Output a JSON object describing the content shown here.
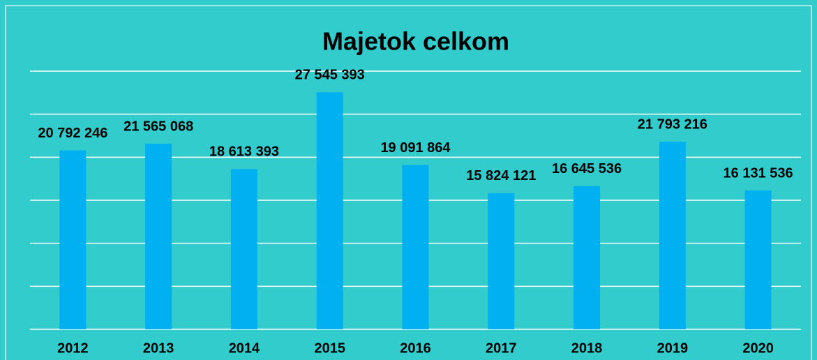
{
  "chart_data": {
    "type": "bar",
    "title": "Majetok celkom",
    "categories": [
      "2012",
      "2013",
      "2014",
      "2015",
      "2016",
      "2017",
      "2018",
      "2019",
      "2020"
    ],
    "values": [
      20792246,
      21565068,
      18613393,
      27545393,
      19091864,
      15824121,
      16645536,
      21793216,
      16131536
    ],
    "value_labels": [
      "20 792 246",
      "21 565 068",
      "18 613 393",
      "27 545 393",
      "19 091 864",
      "15 824 121",
      "16 645 536",
      "21 793 216",
      "16 131 536"
    ],
    "color": "#00b0f0",
    "ylim": [
      0,
      30000000
    ],
    "yticks": [
      0,
      5000000,
      10000000,
      15000000,
      20000000,
      25000000,
      30000000
    ],
    "grid": true
  }
}
